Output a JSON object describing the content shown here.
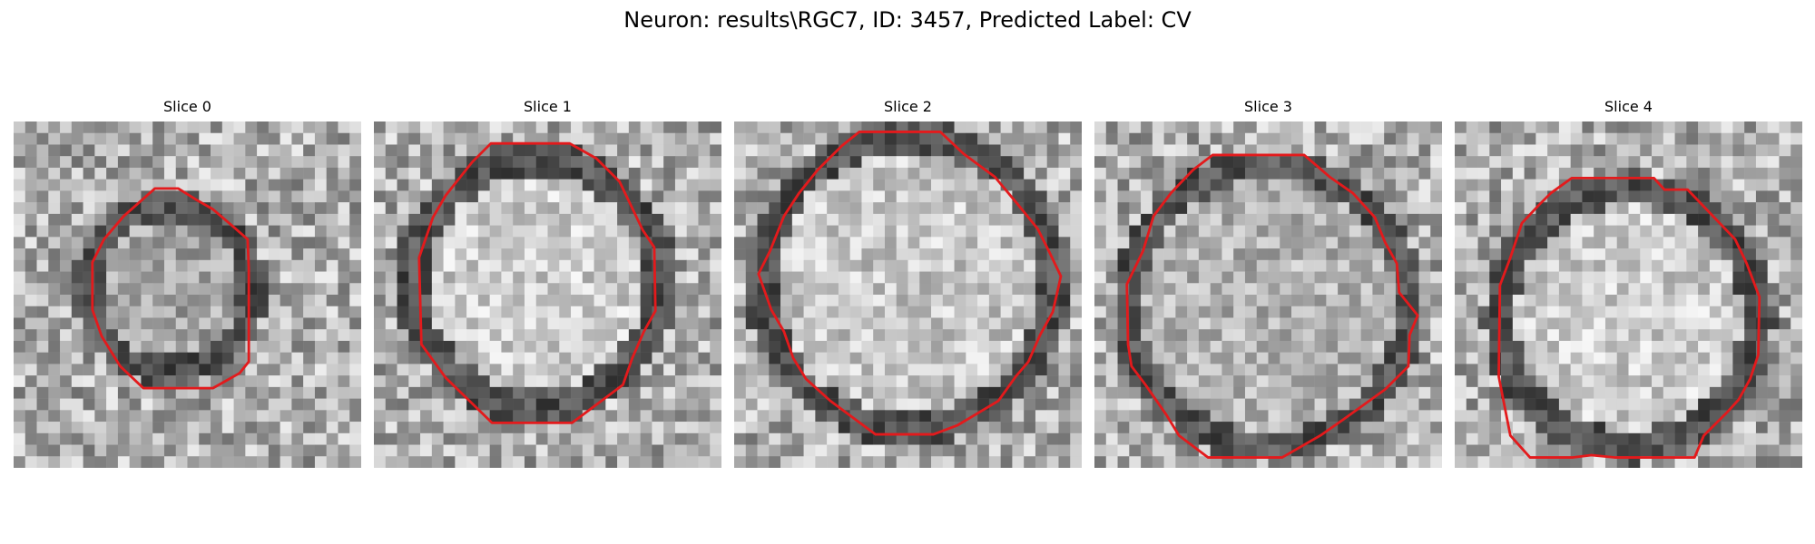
{
  "figure": {
    "title": "Neuron: results\\RGC7, ID: 3457, Predicted Label: CV"
  },
  "panels": [
    {
      "title": "Slice 0"
    },
    {
      "title": "Slice 1"
    },
    {
      "title": "Slice 2"
    },
    {
      "title": "Slice 3"
    },
    {
      "title": "Slice 4"
    }
  ],
  "colors": {
    "contour": "#e31a1c",
    "background": "#ffffff"
  }
}
